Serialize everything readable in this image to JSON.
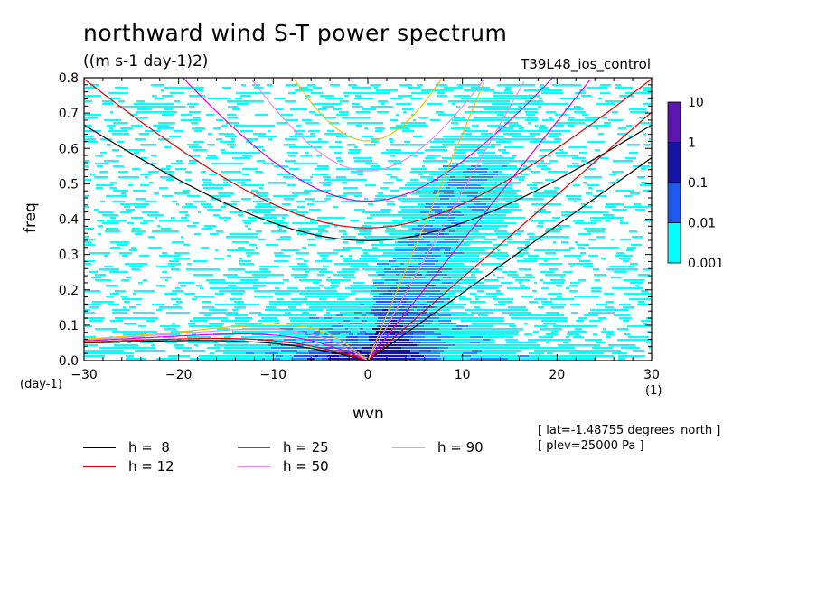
{
  "chart_data": {
    "type": "heatmap",
    "title": "northward wind S-T power spectrum",
    "subtitle": "((m s-1 day-1)2)",
    "run_name": "T39L48_ios_control",
    "xlabel": "wvn",
    "ylabel": "freq",
    "x_unit": "(1)",
    "y_unit": "(day-1)",
    "xlim": [
      -30,
      30
    ],
    "ylim": [
      0,
      0.8
    ],
    "x_ticks": [
      "-30",
      "-20",
      "-10",
      "0",
      "10",
      "20",
      "30"
    ],
    "y_ticks": [
      "0.0",
      "0.1",
      "0.2",
      "0.3",
      "0.4",
      "0.5",
      "0.6",
      "0.7",
      "0.8"
    ],
    "colorbar": {
      "labels": [
        "10",
        "1",
        "0.1",
        "0.01",
        "0.001"
      ],
      "colors": [
        "#5b16b0",
        "#1515a8",
        "#1f5aee",
        "#1e90ff",
        "#00ffff"
      ]
    },
    "series": [
      {
        "name": "h =  8",
        "color": "#000000",
        "h": 8
      },
      {
        "name": "h = 12",
        "color": "#e00000",
        "h": 12
      },
      {
        "name": "h = 25",
        "color": "#dd00dd",
        "h": 25
      },
      {
        "name": "h = 50",
        "color": "#ee88ee",
        "h": 50
      },
      {
        "name": "h = 90",
        "color": "#f0c000",
        "h": 90
      }
    ],
    "annotations": [
      "[ lat=-1.48755 degrees_north ]",
      "[ plev=25000 Pa ]"
    ]
  }
}
